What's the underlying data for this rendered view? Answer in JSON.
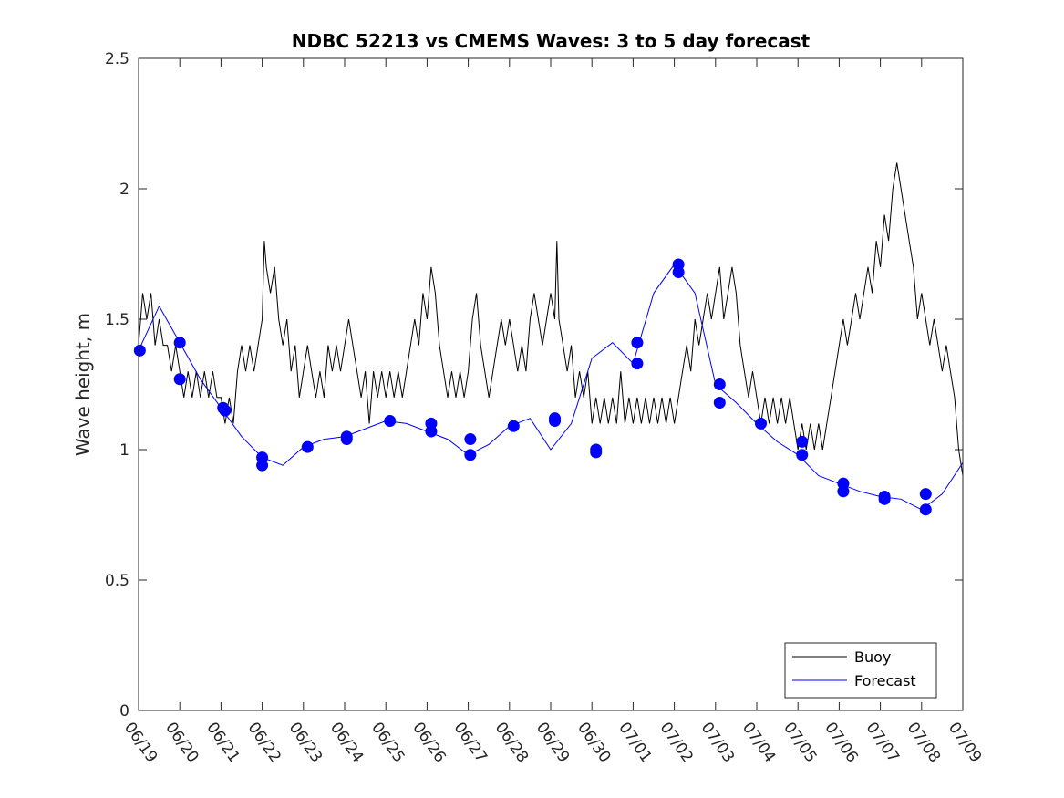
{
  "chart_data": {
    "type": "line",
    "title": "NDBC 52213 vs CMEMS Waves: 3 to 5 day forecast",
    "xlabel": "",
    "ylabel": "Wave height, m",
    "x_ticks": [
      "06/19",
      "06/20",
      "06/21",
      "06/22",
      "06/23",
      "06/24",
      "06/25",
      "06/26",
      "06/27",
      "06/28",
      "06/29",
      "06/30",
      "07/01",
      "07/02",
      "07/03",
      "07/04",
      "07/05",
      "07/06",
      "07/07",
      "07/08",
      "07/09"
    ],
    "y_ticks": [
      "0",
      "0.5",
      "1",
      "1.5",
      "2",
      "2.5"
    ],
    "ylim": [
      0,
      2.5
    ],
    "xlim_days": [
      0,
      20
    ],
    "grid": false,
    "legend_position": "bottom-right",
    "colors": {
      "buoy": "#000000",
      "forecast": "#0000ff",
      "markers": "#0000ff"
    },
    "series": [
      {
        "name": "Buoy",
        "color": "#000000",
        "points": [
          [
            0,
            1.4
          ],
          [
            0.1,
            1.6
          ],
          [
            0.2,
            1.5
          ],
          [
            0.3,
            1.6
          ],
          [
            0.4,
            1.4
          ],
          [
            0.5,
            1.5
          ],
          [
            0.6,
            1.4
          ],
          [
            0.7,
            1.4
          ],
          [
            0.8,
            1.3
          ],
          [
            0.9,
            1.4
          ],
          [
            1.0,
            1.3
          ],
          [
            1.1,
            1.2
          ],
          [
            1.2,
            1.3
          ],
          [
            1.3,
            1.2
          ],
          [
            1.4,
            1.3
          ],
          [
            1.5,
            1.2
          ],
          [
            1.6,
            1.3
          ],
          [
            1.7,
            1.2
          ],
          [
            1.8,
            1.3
          ],
          [
            1.9,
            1.2
          ],
          [
            2.0,
            1.2
          ],
          [
            2.1,
            1.1
          ],
          [
            2.2,
            1.2
          ],
          [
            2.3,
            1.1
          ],
          [
            2.4,
            1.3
          ],
          [
            2.5,
            1.4
          ],
          [
            2.6,
            1.3
          ],
          [
            2.7,
            1.4
          ],
          [
            2.8,
            1.3
          ],
          [
            2.9,
            1.4
          ],
          [
            3.0,
            1.5
          ],
          [
            3.05,
            1.8
          ],
          [
            3.1,
            1.7
          ],
          [
            3.2,
            1.6
          ],
          [
            3.3,
            1.7
          ],
          [
            3.4,
            1.5
          ],
          [
            3.5,
            1.4
          ],
          [
            3.6,
            1.5
          ],
          [
            3.7,
            1.3
          ],
          [
            3.8,
            1.4
          ],
          [
            3.9,
            1.2
          ],
          [
            4.0,
            1.3
          ],
          [
            4.1,
            1.4
          ],
          [
            4.2,
            1.3
          ],
          [
            4.3,
            1.2
          ],
          [
            4.4,
            1.3
          ],
          [
            4.5,
            1.2
          ],
          [
            4.6,
            1.4
          ],
          [
            4.7,
            1.3
          ],
          [
            4.8,
            1.4
          ],
          [
            4.9,
            1.3
          ],
          [
            5.0,
            1.4
          ],
          [
            5.1,
            1.5
          ],
          [
            5.2,
            1.4
          ],
          [
            5.3,
            1.3
          ],
          [
            5.4,
            1.2
          ],
          [
            5.5,
            1.3
          ],
          [
            5.6,
            1.1
          ],
          [
            5.7,
            1.3
          ],
          [
            5.8,
            1.2
          ],
          [
            5.9,
            1.3
          ],
          [
            6.0,
            1.2
          ],
          [
            6.1,
            1.3
          ],
          [
            6.2,
            1.2
          ],
          [
            6.3,
            1.3
          ],
          [
            6.4,
            1.2
          ],
          [
            6.5,
            1.3
          ],
          [
            6.6,
            1.4
          ],
          [
            6.7,
            1.5
          ],
          [
            6.8,
            1.4
          ],
          [
            6.9,
            1.6
          ],
          [
            7.0,
            1.5
          ],
          [
            7.1,
            1.7
          ],
          [
            7.2,
            1.6
          ],
          [
            7.3,
            1.4
          ],
          [
            7.4,
            1.3
          ],
          [
            7.5,
            1.2
          ],
          [
            7.6,
            1.3
          ],
          [
            7.7,
            1.2
          ],
          [
            7.8,
            1.3
          ],
          [
            7.9,
            1.2
          ],
          [
            8.0,
            1.3
          ],
          [
            8.1,
            1.5
          ],
          [
            8.2,
            1.6
          ],
          [
            8.3,
            1.4
          ],
          [
            8.4,
            1.3
          ],
          [
            8.5,
            1.2
          ],
          [
            8.6,
            1.3
          ],
          [
            8.7,
            1.4
          ],
          [
            8.8,
            1.5
          ],
          [
            8.9,
            1.4
          ],
          [
            9.0,
            1.5
          ],
          [
            9.1,
            1.4
          ],
          [
            9.2,
            1.3
          ],
          [
            9.3,
            1.4
          ],
          [
            9.4,
            1.3
          ],
          [
            9.5,
            1.5
          ],
          [
            9.6,
            1.6
          ],
          [
            9.7,
            1.5
          ],
          [
            9.8,
            1.4
          ],
          [
            9.9,
            1.5
          ],
          [
            10.0,
            1.6
          ],
          [
            10.1,
            1.5
          ],
          [
            10.15,
            1.8
          ],
          [
            10.2,
            1.5
          ],
          [
            10.3,
            1.4
          ],
          [
            10.4,
            1.3
          ],
          [
            10.5,
            1.4
          ],
          [
            10.6,
            1.2
          ],
          [
            10.7,
            1.3
          ],
          [
            10.8,
            1.2
          ],
          [
            10.9,
            1.3
          ],
          [
            11.0,
            1.1
          ],
          [
            11.1,
            1.2
          ],
          [
            11.2,
            1.1
          ],
          [
            11.3,
            1.2
          ],
          [
            11.4,
            1.1
          ],
          [
            11.5,
            1.2
          ],
          [
            11.6,
            1.1
          ],
          [
            11.7,
            1.3
          ],
          [
            11.8,
            1.1
          ],
          [
            11.9,
            1.2
          ],
          [
            12.0,
            1.1
          ],
          [
            12.1,
            1.2
          ],
          [
            12.2,
            1.1
          ],
          [
            12.3,
            1.2
          ],
          [
            12.4,
            1.1
          ],
          [
            12.5,
            1.2
          ],
          [
            12.6,
            1.1
          ],
          [
            12.7,
            1.2
          ],
          [
            12.8,
            1.1
          ],
          [
            12.9,
            1.2
          ],
          [
            13.0,
            1.1
          ],
          [
            13.1,
            1.2
          ],
          [
            13.2,
            1.3
          ],
          [
            13.3,
            1.4
          ],
          [
            13.4,
            1.3
          ],
          [
            13.5,
            1.5
          ],
          [
            13.6,
            1.4
          ],
          [
            13.7,
            1.5
          ],
          [
            13.8,
            1.6
          ],
          [
            13.9,
            1.5
          ],
          [
            14.0,
            1.6
          ],
          [
            14.1,
            1.7
          ],
          [
            14.2,
            1.5
          ],
          [
            14.3,
            1.6
          ],
          [
            14.4,
            1.7
          ],
          [
            14.5,
            1.6
          ],
          [
            14.6,
            1.4
          ],
          [
            14.7,
            1.3
          ],
          [
            14.8,
            1.2
          ],
          [
            14.9,
            1.3
          ],
          [
            15.0,
            1.2
          ],
          [
            15.1,
            1.1
          ],
          [
            15.2,
            1.2
          ],
          [
            15.3,
            1.1
          ],
          [
            15.4,
            1.2
          ],
          [
            15.5,
            1.1
          ],
          [
            15.6,
            1.2
          ],
          [
            15.7,
            1.1
          ],
          [
            15.8,
            1.2
          ],
          [
            15.9,
            1.1
          ],
          [
            16.0,
            1.0
          ],
          [
            16.1,
            1.1
          ],
          [
            16.2,
            1.0
          ],
          [
            16.3,
            1.1
          ],
          [
            16.4,
            1.0
          ],
          [
            16.5,
            1.1
          ],
          [
            16.6,
            1.0
          ],
          [
            16.7,
            1.1
          ],
          [
            16.8,
            1.2
          ],
          [
            16.9,
            1.3
          ],
          [
            17.0,
            1.4
          ],
          [
            17.1,
            1.5
          ],
          [
            17.2,
            1.4
          ],
          [
            17.3,
            1.5
          ],
          [
            17.4,
            1.6
          ],
          [
            17.5,
            1.5
          ],
          [
            17.6,
            1.6
          ],
          [
            17.7,
            1.7
          ],
          [
            17.8,
            1.6
          ],
          [
            17.9,
            1.8
          ],
          [
            18.0,
            1.7
          ],
          [
            18.1,
            1.9
          ],
          [
            18.2,
            1.8
          ],
          [
            18.3,
            2.0
          ],
          [
            18.4,
            2.1
          ],
          [
            18.5,
            2.0
          ],
          [
            18.6,
            1.9
          ],
          [
            18.7,
            1.8
          ],
          [
            18.8,
            1.7
          ],
          [
            18.9,
            1.5
          ],
          [
            19.0,
            1.6
          ],
          [
            19.1,
            1.5
          ],
          [
            19.2,
            1.4
          ],
          [
            19.3,
            1.5
          ],
          [
            19.4,
            1.4
          ],
          [
            19.5,
            1.3
          ],
          [
            19.6,
            1.4
          ],
          [
            19.7,
            1.3
          ],
          [
            19.8,
            1.2
          ],
          [
            19.9,
            1.0
          ],
          [
            20.0,
            0.9
          ]
        ]
      },
      {
        "name": "Forecast",
        "color": "#0000ff",
        "points": [
          [
            0,
            1.38
          ],
          [
            0.5,
            1.55
          ],
          [
            1.0,
            1.41
          ],
          [
            1.5,
            1.27
          ],
          [
            2.0,
            1.16
          ],
          [
            2.5,
            1.05
          ],
          [
            3.0,
            0.97
          ],
          [
            3.5,
            0.94
          ],
          [
            4.0,
            1.01
          ],
          [
            4.5,
            1.04
          ],
          [
            5.0,
            1.05
          ],
          [
            5.5,
            1.08
          ],
          [
            6.0,
            1.11
          ],
          [
            6.5,
            1.1
          ],
          [
            7.0,
            1.07
          ],
          [
            7.5,
            1.04
          ],
          [
            8.0,
            0.98
          ],
          [
            8.5,
            1.02
          ],
          [
            9.0,
            1.09
          ],
          [
            9.5,
            1.12
          ],
          [
            10.0,
            1.0
          ],
          [
            10.5,
            1.1
          ],
          [
            11.0,
            1.35
          ],
          [
            11.5,
            1.41
          ],
          [
            12.0,
            1.33
          ],
          [
            12.5,
            1.6
          ],
          [
            13.0,
            1.71
          ],
          [
            13.5,
            1.6
          ],
          [
            14.0,
            1.25
          ],
          [
            14.5,
            1.18
          ],
          [
            15.0,
            1.1
          ],
          [
            15.5,
            1.03
          ],
          [
            16.0,
            0.98
          ],
          [
            16.5,
            0.9
          ],
          [
            17.0,
            0.87
          ],
          [
            17.5,
            0.84
          ],
          [
            18.0,
            0.82
          ],
          [
            18.5,
            0.81
          ],
          [
            19.0,
            0.77
          ],
          [
            19.5,
            0.83
          ],
          [
            20.0,
            0.95
          ]
        ]
      }
    ],
    "marker_points": [
      [
        0.03,
        1.38
      ],
      [
        1.0,
        1.41
      ],
      [
        1.0,
        1.27
      ],
      [
        2.05,
        1.16
      ],
      [
        2.1,
        1.15
      ],
      [
        3.0,
        0.97
      ],
      [
        3.0,
        0.94
      ],
      [
        4.1,
        1.01
      ],
      [
        5.05,
        1.05
      ],
      [
        5.05,
        1.04
      ],
      [
        6.1,
        1.11
      ],
      [
        7.1,
        1.1
      ],
      [
        7.1,
        1.07
      ],
      [
        8.05,
        1.04
      ],
      [
        8.05,
        0.98
      ],
      [
        9.1,
        1.09
      ],
      [
        10.1,
        1.12
      ],
      [
        10.1,
        1.11
      ],
      [
        11.1,
        1.0
      ],
      [
        11.1,
        0.99
      ],
      [
        12.1,
        1.41
      ],
      [
        12.1,
        1.33
      ],
      [
        13.1,
        1.71
      ],
      [
        13.1,
        1.68
      ],
      [
        14.1,
        1.25
      ],
      [
        14.1,
        1.18
      ],
      [
        15.1,
        1.1
      ],
      [
        16.1,
        1.03
      ],
      [
        16.1,
        0.98
      ],
      [
        17.1,
        0.87
      ],
      [
        17.1,
        0.84
      ],
      [
        18.1,
        0.82
      ],
      [
        18.1,
        0.81
      ],
      [
        19.1,
        0.83
      ],
      [
        19.1,
        0.77
      ]
    ]
  },
  "legend": {
    "items": [
      {
        "label": "Buoy",
        "color": "#000000"
      },
      {
        "label": "Forecast",
        "color": "#0000ff"
      }
    ]
  }
}
